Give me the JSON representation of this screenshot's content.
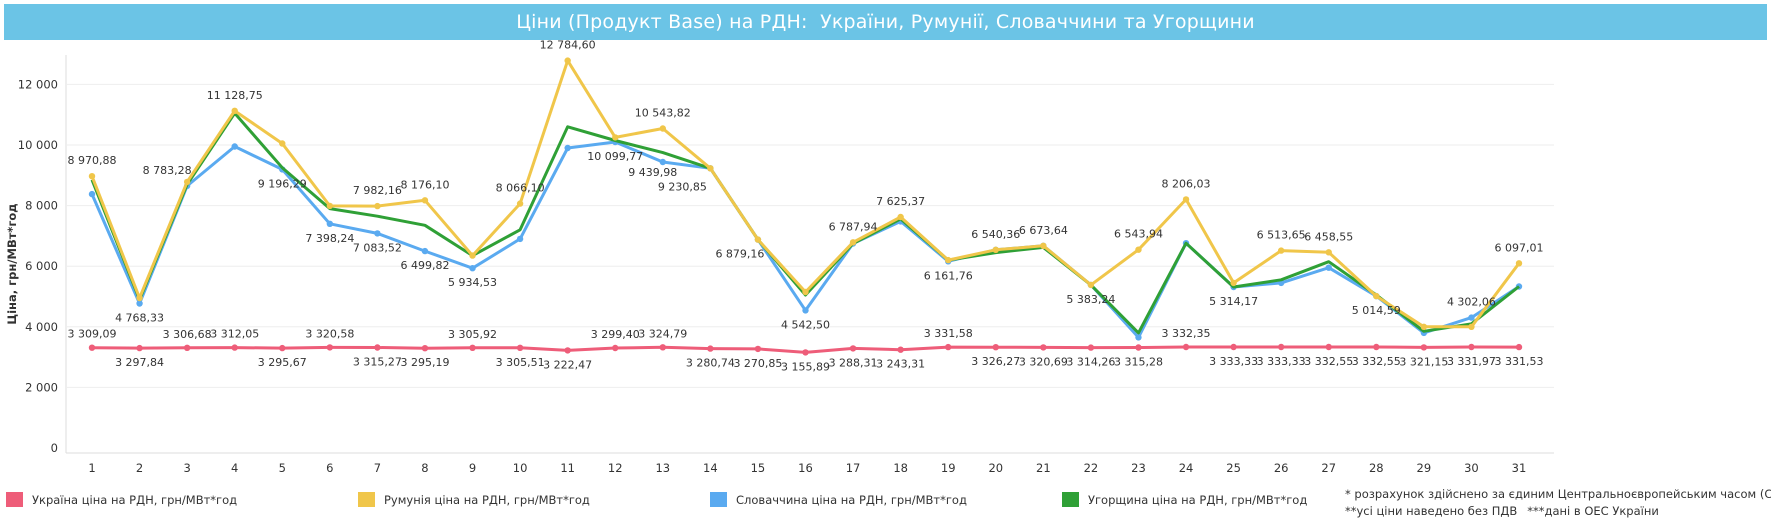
{
  "title": "Ціни (Продукт Base) на РДН:  України, Румунії, Словаччини та Угорщини",
  "notes": {
    "cet": "* розрахунок здійснено за єдиним Центральноєвропейським часом (CET)",
    "vat": "**усі ціни наведено без ПДВ",
    "oes": "***дані в ОЕС України"
  },
  "colors": {
    "ukraine": "#ee5d79",
    "romania": "#f0c64a",
    "slovakia": "#5aaaf0",
    "hungary": "#2fa036",
    "title_bg": "#6bc4e6",
    "grid": "#eeeeee"
  },
  "chart_data": {
    "type": "line",
    "title": "Ціни (Продукт Base) на РДН:  України, Румунії, Словаччини та Угорщини",
    "xlabel": "",
    "ylabel": "Ціна, грн/МВт*год",
    "ylim": [
      0,
      13000
    ],
    "yticks": [
      0,
      2000,
      4000,
      6000,
      8000,
      10000,
      12000
    ],
    "ytick_labels": [
      "0",
      "2 000",
      "4 000",
      "6 000",
      "8 000",
      "10 000",
      "12 000"
    ],
    "grid": true,
    "legend_position": "bottom",
    "x": [
      1,
      2,
      3,
      4,
      5,
      6,
      7,
      8,
      9,
      10,
      11,
      12,
      13,
      14,
      15,
      16,
      17,
      18,
      19,
      20,
      21,
      22,
      23,
      24,
      25,
      26,
      27,
      28,
      29,
      30,
      31
    ],
    "series": [
      {
        "name": "Україна ціна на РДН, грн/МВт*год",
        "key": "ukraine",
        "values": [
          3309.09,
          3297.84,
          3306.68,
          3312.05,
          3295.67,
          3320.58,
          3315.27,
          3295.19,
          3305.92,
          3305.51,
          3222.47,
          3299.4,
          3324.79,
          3280.74,
          3270.85,
          3155.89,
          3288.31,
          3243.31,
          3331.58,
          3326.27,
          3320.69,
          3314.26,
          3315.28,
          3332.35,
          3333.33,
          3333.33,
          3332.55,
          3332.55,
          3321.15,
          3331.97,
          3331.53
        ],
        "labels": [
          "3 309,09",
          "3 297,84",
          "3 306,68",
          "3 312,05",
          "3 295,67",
          "3 320,58",
          "3 315,27",
          "3 295,19",
          "3 305,92",
          "3 305,51",
          "3 222,47",
          "3 299,40",
          "3 324,79",
          "3 280,74",
          "3 270,85",
          "3 155,89",
          "3 288,31",
          "3 243,31",
          "3 331,58",
          "3 326,27",
          "3 320,69",
          "3 314,26",
          "3 315,28",
          "3 332,35",
          "3 333,33",
          "3 333,33",
          "3 332,55",
          "3 332,55",
          "3 321,15",
          "3 331,97",
          "3 331,53"
        ]
      },
      {
        "name": "Румунія ціна на РДН, грн/МВт*год",
        "key": "romania",
        "values": [
          8970.88,
          4950,
          8783.28,
          11128.75,
          10050,
          7990,
          7982.16,
          8176.1,
          6350,
          8066.1,
          12784.6,
          10250,
          10543.82,
          9230.85,
          6879.16,
          5150,
          6787.94,
          7625.37,
          6200,
          6540.36,
          6673.64,
          5383.24,
          6543.94,
          8206.03,
          5450,
          6513.65,
          6458.55,
          5014.59,
          4000,
          4000,
          6097.01
        ],
        "labels": {
          "1": "8 970,88",
          "3": "8 783,28",
          "4": "11 128,75",
          "7": "7 982,16",
          "8": "8 176,10",
          "10": "8 066,10",
          "11": "12 784,60",
          "13": "10 543,82",
          "17": "6 787,94",
          "18": "7 625,37",
          "20": "6 540,36",
          "21": "6 673,64",
          "23": "6 543,94",
          "24": "8 206,03",
          "26": "6 513,65",
          "27": "6 458,55",
          "31": "6 097,01"
        }
      },
      {
        "name": "Словаччина ціна на РДН, грн/МВт*год",
        "key": "slovakia",
        "values": [
          8380,
          4768.33,
          8650,
          9950,
          9196.29,
          7398.24,
          7083.52,
          6499.82,
          5934.53,
          6900,
          9900,
          10099.77,
          9439.98,
          9230.85,
          6879.16,
          4542.5,
          6750,
          7480,
          6161.76,
          6540.36,
          6673.64,
          5383.24,
          3650,
          6760,
          5314.17,
          5450,
          5950,
          5014.59,
          3800,
          4302.06,
          5330
        ],
        "labels": {
          "2": "4 768,33",
          "5": "9 196,29",
          "6": "7 398,24",
          "7": "7 083,52",
          "8": "6 499,82",
          "9": "5 934,53",
          "12": "10 099,77",
          "13": "9 439,98",
          "14": "9 230,85",
          "15": "6 879,16",
          "16": "4 542,50",
          "19": "6 161,76",
          "22": "5 383,24",
          "25": "5 314,17",
          "28": "5 014,59",
          "30": "4 302,06"
        }
      },
      {
        "name": "Угорщина ціна на РДН, грн/МВт*год",
        "key": "hungary",
        "values": [
          8850,
          4900,
          8700,
          11050,
          9250,
          7900,
          7650,
          7350,
          6350,
          7200,
          10600,
          10150,
          9750,
          9230.85,
          6879.16,
          5050,
          6750,
          7560,
          6200,
          6450,
          6620,
          5383.24,
          3800,
          6760,
          5314.17,
          5550,
          6150,
          5050,
          3850,
          4100,
          5330
        ],
        "labels": {}
      }
    ]
  }
}
